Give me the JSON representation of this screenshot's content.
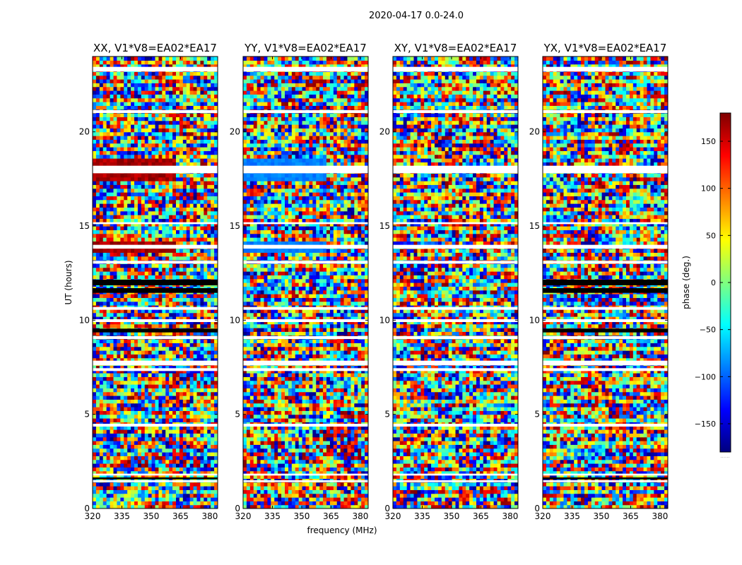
{
  "figure": {
    "suptitle": "2020-04-17 0.0-24.0"
  },
  "chart_data": [
    {
      "type": "heatmap",
      "title": "XX, V1*V8=EA02*EA17",
      "xlabel": "frequency (MHz)",
      "ylabel": "UT (hours)",
      "xlim": [
        320,
        384
      ],
      "ylim": [
        0,
        24
      ],
      "xticks": [
        "320",
        "335",
        "350",
        "365",
        "380"
      ],
      "yticks": [
        "0",
        "5",
        "10",
        "15",
        "20"
      ]
    },
    {
      "type": "heatmap",
      "title": "YY, V1*V8=EA02*EA17",
      "xlabel": "frequency (MHz)",
      "ylabel": "UT (hours)",
      "xlim": [
        320,
        384
      ],
      "ylim": [
        0,
        24
      ],
      "xticks": [
        "320",
        "335",
        "350",
        "365",
        "380"
      ],
      "yticks": [
        "0",
        "5",
        "10",
        "15",
        "20"
      ]
    },
    {
      "type": "heatmap",
      "title": "XY, V1*V8=EA02*EA17",
      "xlabel": "frequency (MHz)",
      "ylabel": "UT (hours)",
      "xlim": [
        320,
        384
      ],
      "ylim": [
        0,
        24
      ],
      "xticks": [
        "320",
        "335",
        "350",
        "365",
        "380"
      ],
      "yticks": [
        "0",
        "5",
        "10",
        "15",
        "20"
      ]
    },
    {
      "type": "heatmap",
      "title": "YX, V1*V8=EA02*EA17",
      "xlabel": "frequency (MHz)",
      "ylabel": "UT (hours)",
      "xlim": [
        320,
        384
      ],
      "ylim": [
        0,
        24
      ],
      "xticks": [
        "320",
        "335",
        "350",
        "365",
        "380"
      ],
      "yticks": [
        "0",
        "5",
        "10",
        "15",
        "20"
      ]
    }
  ],
  "colorbar": {
    "label": "phase (deg.)",
    "range": [
      -180,
      180
    ],
    "ticks": [
      "150",
      "100",
      "50",
      "0",
      "−50",
      "−100",
      "−150"
    ],
    "tick_values": [
      150,
      100,
      50,
      0,
      -50,
      -100,
      -150
    ],
    "colormap": [
      "#00007f",
      "#0000ff",
      "#007fff",
      "#00ffff",
      "#7fff7f",
      "#ffff00",
      "#ff7f00",
      "#ff0000",
      "#7f0000"
    ],
    "bottom_note": "......"
  },
  "colors": {
    "flagged_white": "#ffffff",
    "flagged_black": "#000000"
  }
}
